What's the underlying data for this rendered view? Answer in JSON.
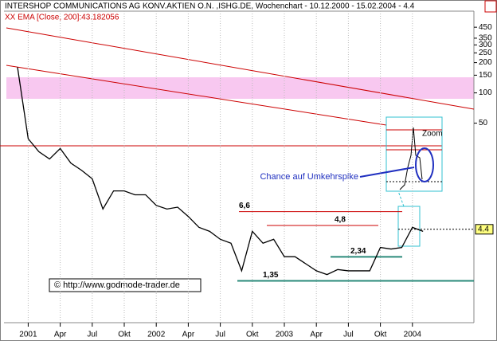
{
  "chart_data": {
    "type": "line",
    "title": "INTERSHOP COMMUNICATIONS AG KONV.AKTIEN O.N. ,ISHG.DE, Wochenchart - 10.12.2000 - 15.02.2004 - 4.4",
    "legend_text": "XX EMA [Close, 200]:43.182056",
    "copyright": "© http://www.godmode-trader.de",
    "annotations": {
      "chance": "Chance auf Umkehrspike",
      "zoom": "Zoom"
    },
    "log_scale": true,
    "grid": true,
    "x": [
      "2000-12",
      "2001-01",
      "2001-02",
      "2001-03",
      "2001-04",
      "2001-05",
      "2001-06",
      "2001-07",
      "2001-08",
      "2001-09",
      "2001-10",
      "2001-11",
      "2001-12",
      "2002-01",
      "2002-02",
      "2002-03",
      "2002-04",
      "2002-05",
      "2002-06",
      "2002-07",
      "2002-08",
      "2002-09",
      "2002-10",
      "2002-11",
      "2002-12",
      "2003-01",
      "2003-02",
      "2003-03",
      "2003-04",
      "2003-05",
      "2003-06",
      "2003-07",
      "2003-08",
      "2003-09",
      "2003-10",
      "2003-11",
      "2003-12",
      "2004-01",
      "2004-02"
    ],
    "series": [
      {
        "name": "Close",
        "color": "#000000",
        "values": [
          180,
          35,
          26,
          22,
          28,
          20,
          17,
          14,
          7,
          10.6,
          10.6,
          9.7,
          9.7,
          7.6,
          7,
          7.3,
          5.9,
          4.6,
          4.2,
          3.5,
          3.2,
          1.7,
          4.2,
          3.2,
          3.5,
          2.35,
          2.35,
          2.0,
          1.7,
          1.56,
          1.75,
          1.7,
          1.7,
          1.7,
          2.9,
          2.8,
          2.9,
          4.6,
          4.2
        ]
      }
    ],
    "levels": [
      {
        "value": 6.6,
        "label": "6,6"
      },
      {
        "value": 4.8,
        "label": "4,8"
      },
      {
        "value": 2.34,
        "label": "2,34"
      },
      {
        "value": 1.35,
        "label": "1,35"
      }
    ],
    "last_price": 4.4,
    "ylim": [
      0.6,
      650
    ],
    "yticks": [
      450,
      350,
      300,
      250,
      200,
      150,
      100,
      50
    ],
    "xticks": [
      {
        "value": "2001-01",
        "label": "2001"
      },
      {
        "value": "2001-04",
        "label": "Apr"
      },
      {
        "value": "2001-07",
        "label": "Jul"
      },
      {
        "value": "2001-10",
        "label": "Okt"
      },
      {
        "value": "2002-01",
        "label": "2002"
      },
      {
        "value": "2002-04",
        "label": "Apr"
      },
      {
        "value": "2002-07",
        "label": "Jul"
      },
      {
        "value": "2002-10",
        "label": "Okt"
      },
      {
        "value": "2003-01",
        "label": "2003"
      },
      {
        "value": "2003-04",
        "label": "Apr"
      },
      {
        "value": "2003-07",
        "label": "Jul"
      },
      {
        "value": "2003-10",
        "label": "Okt"
      },
      {
        "value": "2004-01",
        "label": "2004"
      }
    ]
  }
}
